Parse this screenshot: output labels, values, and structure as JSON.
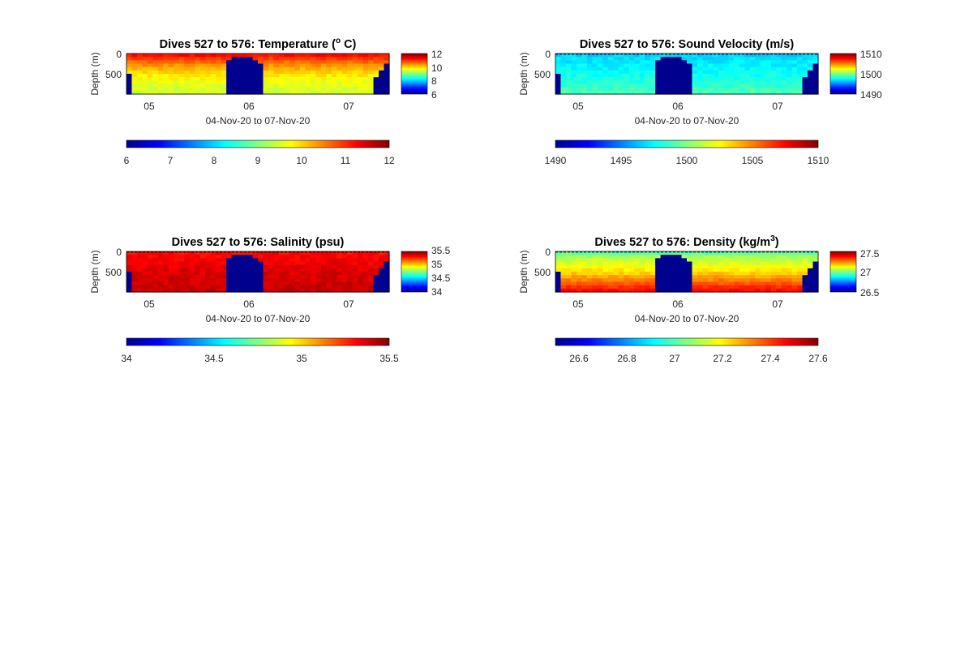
{
  "figure": {
    "background": "#ffffff"
  },
  "colormap": [
    "#00008f",
    "#0000ff",
    "#0080ff",
    "#00ffff",
    "#80ff80",
    "#ffff00",
    "#ff8000",
    "#ff0000",
    "#800000"
  ],
  "chart_data": [
    {
      "type": "heatmap",
      "title": "Dives 527 to 576: Temperature (",
      "title_sup": "o",
      "title_suffix": " C)",
      "ylabel": "Depth (m)",
      "xlabel": "04-Nov-20 to 07-Nov-20",
      "x_ticks": [
        "05",
        "06",
        "07"
      ],
      "y_ticks": [
        "0",
        "500"
      ],
      "y_range_m": [
        0,
        1000
      ],
      "clim": [
        6,
        12
      ],
      "colorbar_ticks": [
        "12",
        "10",
        "8",
        "6"
      ],
      "h_colorbar_ticks": [
        "6",
        "7",
        "8",
        "9",
        "10",
        "11",
        "12"
      ],
      "profile": [
        {
          "depth": 0,
          "value": 11.3
        },
        {
          "depth": 100,
          "value": 11.0
        },
        {
          "depth": 250,
          "value": 10.5
        },
        {
          "depth": 500,
          "value": 9.9
        },
        {
          "depth": 750,
          "value": 9.6
        },
        {
          "depth": 1000,
          "value": 9.4
        }
      ]
    },
    {
      "type": "heatmap",
      "title": "Dives 527 to 576: Sound Velocity (m/s)",
      "ylabel": "Depth (m)",
      "xlabel": "04-Nov-20 to 07-Nov-20",
      "x_ticks": [
        "05",
        "06",
        "07"
      ],
      "y_ticks": [
        "0",
        "500"
      ],
      "y_range_m": [
        0,
        1000
      ],
      "clim": [
        1490,
        1510
      ],
      "colorbar_ticks": [
        "1510",
        "1500",
        "1490"
      ],
      "h_colorbar_ticks": [
        "1490",
        "1495",
        "1500",
        "1505",
        "1510"
      ],
      "profile": [
        {
          "depth": 0,
          "value": 1496.5
        },
        {
          "depth": 150,
          "value": 1497.0
        },
        {
          "depth": 400,
          "value": 1497.5
        },
        {
          "depth": 700,
          "value": 1498.2
        },
        {
          "depth": 1000,
          "value": 1499.0
        }
      ]
    },
    {
      "type": "heatmap",
      "title": "Dives 527 to 576: Salinity (psu)",
      "ylabel": "Depth (m)",
      "xlabel": "04-Nov-20 to 07-Nov-20",
      "x_ticks": [
        "05",
        "06",
        "07"
      ],
      "y_ticks": [
        "0",
        "500"
      ],
      "y_range_m": [
        0,
        1000
      ],
      "clim": [
        34,
        35.5
      ],
      "colorbar_ticks": [
        "35.5",
        "35",
        "34.5",
        "34"
      ],
      "h_colorbar_ticks": [
        "34",
        "34.5",
        "35",
        "35.5"
      ],
      "profile": [
        {
          "depth": 0,
          "value": 35.3
        },
        {
          "depth": 300,
          "value": 35.34
        },
        {
          "depth": 600,
          "value": 35.37
        },
        {
          "depth": 1000,
          "value": 35.4
        }
      ]
    },
    {
      "type": "heatmap",
      "title": "Dives 527 to 576: Density (kg/m",
      "title_sup": "3",
      "title_suffix": ")",
      "ylabel": "Depth (m)",
      "xlabel": "04-Nov-20 to 07-Nov-20",
      "x_ticks": [
        "05",
        "06",
        "07"
      ],
      "y_ticks": [
        "0",
        "500"
      ],
      "y_range_m": [
        0,
        1000
      ],
      "clim": [
        26.5,
        27.6
      ],
      "colorbar_ticks": [
        "27.5",
        "27",
        "26.5"
      ],
      "h_colorbar_ticks": [
        "26.6",
        "26.8",
        "27",
        "27.2",
        "27.4",
        "27.6"
      ],
      "profile": [
        {
          "depth": 0,
          "value": 26.85
        },
        {
          "depth": 50,
          "value": 27.05
        },
        {
          "depth": 200,
          "value": 27.12
        },
        {
          "depth": 500,
          "value": 27.22
        },
        {
          "depth": 750,
          "value": 27.35
        },
        {
          "depth": 1000,
          "value": 27.48
        }
      ]
    }
  ]
}
